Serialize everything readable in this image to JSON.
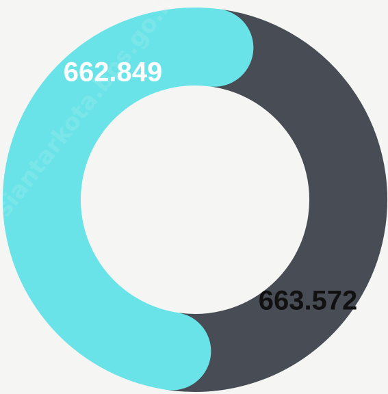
{
  "chart_data": {
    "type": "pie",
    "categories": [
      "",
      ""
    ],
    "values": [
      662.849,
      663.572
    ],
    "labels": [
      "662.849",
      "663.572"
    ],
    "colors": [
      "#474c55",
      "#69e3e8"
    ],
    "label_colors": [
      "#ffffff",
      "#111111"
    ],
    "background": "#f5f6f4",
    "style": "donut with rounded segment ends"
  },
  "watermark": "siantarkota.bps.go.id"
}
